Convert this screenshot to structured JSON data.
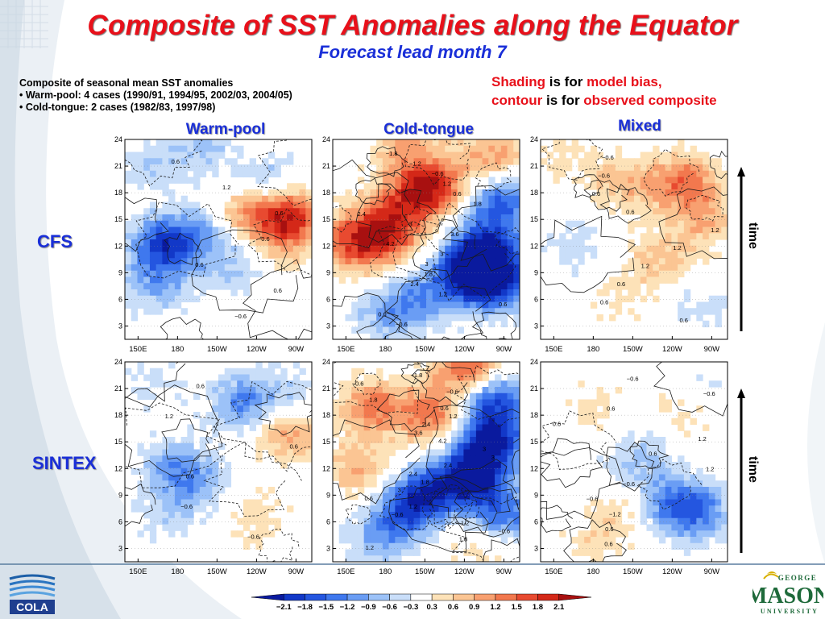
{
  "title": "Composite of SST Anomalies along the Equator",
  "subtitle": "Forecast lead month 7",
  "description": {
    "line1": "Composite of seasonal mean SST anomalies",
    "line2": "• Warm-pool: 4 cases (1990/91, 1994/95, 2002/03, 2004/05)",
    "line3": "• Cold-tongue: 2 cases (1982/83, 1997/98)"
  },
  "note": {
    "shading_word": "Shading",
    "is_for_1": " is for ",
    "model_bias": "model bias,",
    "contour_word": "contour",
    "is_for_2": " is for ",
    "observed_composite": "observed composite"
  },
  "columns": [
    "Warm-pool",
    "Cold-tongue",
    "Mixed"
  ],
  "rows": [
    "CFS",
    "SINTEX"
  ],
  "time_label": "time",
  "logos": {
    "cola": "COLA",
    "gmu_small": "GEORGE",
    "gmu_big": "MASON",
    "gmu_bottom": "UNIVERSITY"
  },
  "colors": {
    "title": "#e8101a",
    "blue_text": "#1a2fd8"
  },
  "chart_data": {
    "type": "heatmap",
    "layout": "2 rows x 3 columns of Hovmoller panels",
    "x_ticks": [
      "150E",
      "180",
      "150W",
      "120W",
      "90W"
    ],
    "y_ticks": [
      "3",
      "6",
      "9",
      "12",
      "15",
      "18",
      "21",
      "24"
    ],
    "ylim": [
      1.5,
      24
    ],
    "colorbar": {
      "levels": [
        -2.1,
        -1.8,
        -1.5,
        -1.2,
        -0.9,
        -0.6,
        -0.3,
        0.3,
        0.6,
        0.9,
        1.2,
        1.5,
        1.8,
        2.1
      ],
      "labels": [
        "−2.1",
        "−1.8",
        "−1.5",
        "−1.2",
        "−0.9",
        "−0.6",
        "−0.3",
        "0.3",
        "0.6",
        "0.9",
        "1.2",
        "1.5",
        "1.8",
        "2.1"
      ],
      "colors": [
        "#0a1a9e",
        "#1238c8",
        "#2456e0",
        "#3f78ee",
        "#6a9df4",
        "#9cc2f8",
        "#c9def9",
        "#ffffff",
        "#fde2b8",
        "#fbc593",
        "#f8a070",
        "#f2784e",
        "#e84a30",
        "#d42818",
        "#a81010"
      ]
    },
    "panels": [
      {
        "name": "CFS Warm-pool",
        "contour_labels": [
          "0.6",
          "1.2",
          "0.6",
          "−0.6",
          "0.6",
          "0.6",
          "−0.6"
        ],
        "blobs": [
          {
            "lon": 170,
            "month": 12,
            "val": -1.8
          },
          {
            "lon": 165,
            "month": 7.5,
            "val": -0.8
          },
          {
            "lon": 225,
            "month": 10,
            "val": -0.7
          },
          {
            "lon": 200,
            "month": 14,
            "val": -0.8
          },
          {
            "lon": 265,
            "month": 15.5,
            "val": 1.9
          },
          {
            "lon": 232,
            "month": 15.8,
            "val": 1.1
          },
          {
            "lon": 250,
            "month": 19,
            "val": -0.9
          },
          {
            "lon": 200,
            "month": 23,
            "val": -0.6
          },
          {
            "lon": 160,
            "month": 21,
            "val": -0.5
          },
          {
            "lon": 260,
            "month": 12,
            "val": 0.6
          }
        ]
      },
      {
        "name": "CFS Cold-tongue",
        "contour_labels": [
          "−1.8",
          "−1.2",
          "−0.6",
          "1.2",
          "0.6",
          "1.8",
          "2.4",
          "3",
          "3.6",
          "4.2",
          "3",
          "3",
          "1.8",
          "2.4",
          "1.2",
          "0.6",
          "0.6",
          "−0.6"
        ],
        "blobs": [
          {
            "lon": 213,
            "month": 18.5,
            "val": 2.2
          },
          {
            "lon": 185,
            "month": 16,
            "val": 1.0
          },
          {
            "lon": 158,
            "month": 12.5,
            "val": 1.7
          },
          {
            "lon": 185,
            "month": 13,
            "val": 1.1
          },
          {
            "lon": 255,
            "month": 11.5,
            "val": -2.0
          },
          {
            "lon": 262,
            "month": 8,
            "val": -2.2
          },
          {
            "lon": 240,
            "month": 9,
            "val": -1.4
          },
          {
            "lon": 205,
            "month": 6,
            "val": -1.0
          },
          {
            "lon": 180,
            "month": 4,
            "val": -0.7
          },
          {
            "lon": 268,
            "month": 17,
            "val": -1.6
          },
          {
            "lon": 195,
            "month": 23.5,
            "val": 0.9
          },
          {
            "lon": 262,
            "month": 22,
            "val": 1.1
          }
        ]
      },
      {
        "name": "CFS Mixed",
        "contour_labels": [
          "−0.6",
          "−0.6",
          "0.6",
          "0.6",
          "1.2",
          "1.2",
          "1.2",
          "0.6",
          "0.6",
          "0.6"
        ],
        "blobs": [
          {
            "lon": 250,
            "month": 19,
            "val": 1.4
          },
          {
            "lon": 205,
            "month": 19,
            "val": 0.8
          },
          {
            "lon": 265,
            "month": 14.5,
            "val": 0.7
          },
          {
            "lon": 165,
            "month": 12,
            "val": -0.5
          },
          {
            "lon": 230,
            "month": 10.5,
            "val": 0.7
          },
          {
            "lon": 200,
            "month": 6,
            "val": 0.4
          },
          {
            "lon": 260,
            "month": 5,
            "val": -0.4
          },
          {
            "lon": 160,
            "month": 22,
            "val": 0.4
          }
        ]
      },
      {
        "name": "SINTEX Warm-pool",
        "contour_labels": [
          "0.6",
          "1.2",
          "0.6",
          "0.6",
          "−0.6",
          "−0.6"
        ],
        "blobs": [
          {
            "lon": 178,
            "month": 12,
            "val": -1.0
          },
          {
            "lon": 195,
            "month": 10,
            "val": -0.6
          },
          {
            "lon": 230,
            "month": 19.5,
            "val": -1.2
          },
          {
            "lon": 265,
            "month": 16,
            "val": 1.1
          },
          {
            "lon": 240,
            "month": 6.5,
            "val": 0.5
          },
          {
            "lon": 170,
            "month": 6,
            "val": -0.4
          },
          {
            "lon": 160,
            "month": 22,
            "val": -0.4
          },
          {
            "lon": 265,
            "month": 20,
            "val": -0.5
          }
        ]
      },
      {
        "name": "SINTEX Cold-tongue",
        "contour_labels": [
          "−1.8",
          "−0.6",
          "−0.6",
          "1.8",
          "0.6",
          "1.2",
          "2.4",
          "3.6",
          "4.2",
          "3",
          "3",
          "2.4",
          "2.4",
          "1.8",
          "3",
          "0.6",
          "1.2",
          "−0.6",
          "1.2",
          "−0.6",
          "1.8",
          "1.2"
        ],
        "blobs": [
          {
            "lon": 245,
            "month": 11,
            "val": -2.2
          },
          {
            "lon": 260,
            "month": 15,
            "val": -2.1
          },
          {
            "lon": 262,
            "month": 20,
            "val": -1.9
          },
          {
            "lon": 210,
            "month": 9,
            "val": -1.8
          },
          {
            "lon": 190,
            "month": 6.5,
            "val": -1.0
          },
          {
            "lon": 175,
            "month": 4,
            "val": -0.6
          },
          {
            "lon": 215,
            "month": 18,
            "val": 1.4
          },
          {
            "lon": 170,
            "month": 19,
            "val": 1.3
          },
          {
            "lon": 245,
            "month": 23,
            "val": 1.8
          },
          {
            "lon": 160,
            "month": 12,
            "val": 0.9
          },
          {
            "lon": 255,
            "month": 4,
            "val": 0.8
          },
          {
            "lon": 268,
            "month": 6.5,
            "val": -1.6
          }
        ]
      },
      {
        "name": "SINTEX Mixed",
        "contour_labels": [
          "−0.6",
          "−0.6",
          "0.6",
          "0.6",
          "1.2",
          "0.6",
          "1.2",
          "−0.6",
          "−0.6",
          "−1.2",
          "0.6",
          "0.6"
        ],
        "blobs": [
          {
            "lon": 215,
            "month": 13,
            "val": -0.7
          },
          {
            "lon": 240,
            "month": 8,
            "val": -1.2
          },
          {
            "lon": 262,
            "month": 7,
            "val": -1.0
          },
          {
            "lon": 200,
            "month": 7,
            "val": 0.5
          },
          {
            "lon": 180,
            "month": 19,
            "val": 0.4
          },
          {
            "lon": 250,
            "month": 18.5,
            "val": 0.5
          },
          {
            "lon": 180,
            "month": 3,
            "val": 0.4
          },
          {
            "lon": 265,
            "month": 21,
            "val": -0.4
          }
        ]
      }
    ]
  }
}
